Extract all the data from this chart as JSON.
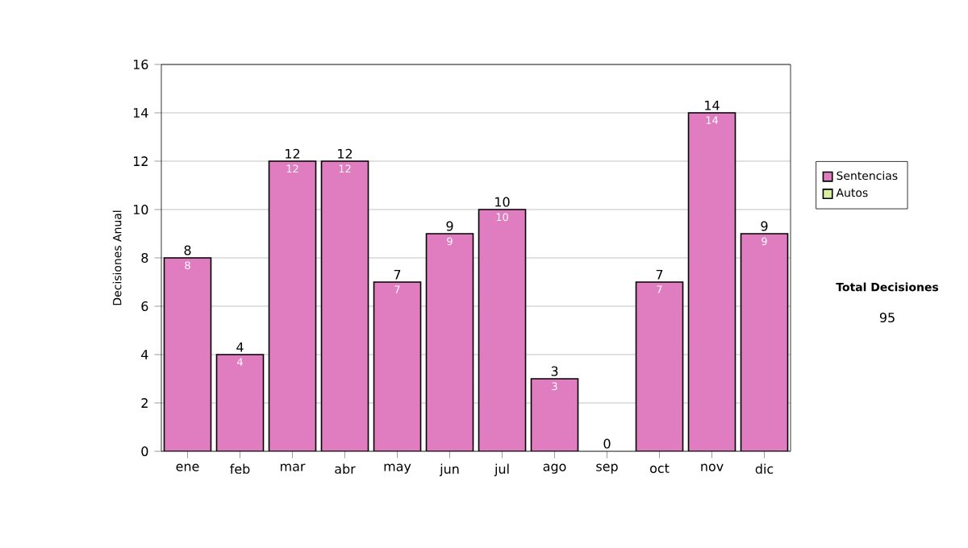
{
  "chart_data": {
    "type": "bar",
    "stacked": true,
    "ylabel": "Decisiones Anual",
    "categories": [
      "ene",
      "feb",
      "mar",
      "abr",
      "may",
      "jun",
      "jul",
      "ago",
      "sep",
      "oct",
      "nov",
      "dic"
    ],
    "series": [
      {
        "name": "Sentencias",
        "color": "#e07cc0",
        "values": [
          8,
          4,
          12,
          12,
          7,
          9,
          10,
          3,
          0,
          7,
          14,
          9
        ],
        "value_labels": [
          "8",
          "4",
          "12",
          "12",
          "7",
          "9",
          "10",
          "3",
          null,
          "7",
          "14",
          "9"
        ]
      },
      {
        "name": "Autos",
        "color": "#d8f0a0",
        "values": [
          0,
          0,
          0,
          0,
          0,
          0,
          0,
          0,
          0,
          0,
          0,
          0
        ]
      }
    ],
    "totals": [
      "8",
      "4",
      "12",
      "12",
      "7",
      "9",
      "10",
      "3",
      "0",
      "7",
      "14",
      "9"
    ],
    "ylim": [
      0,
      16
    ],
    "yticks": [
      0,
      2,
      4,
      6,
      8,
      10,
      12,
      14,
      16
    ],
    "grid": "y",
    "legend": "right",
    "annotations": [
      "Total Decisiones",
      "95"
    ]
  }
}
